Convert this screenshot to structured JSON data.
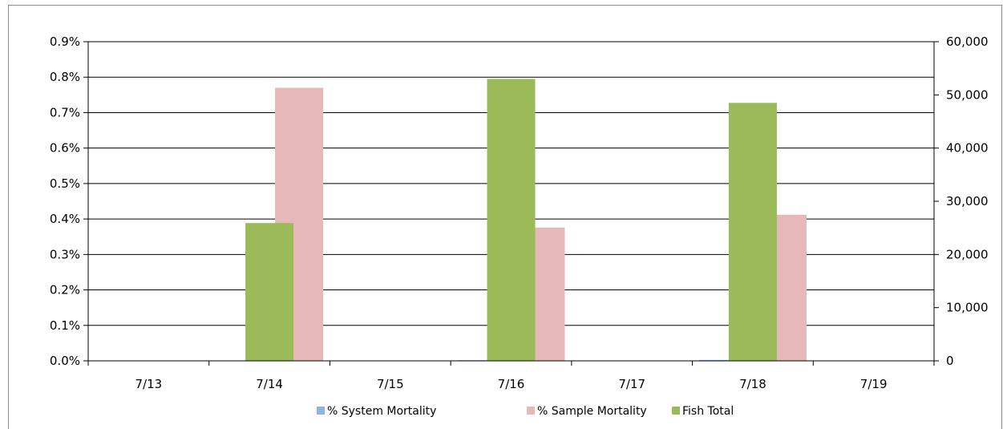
{
  "chart_data": {
    "type": "bar",
    "categories": [
      "7/13",
      "7/14",
      "7/15",
      "7/16",
      "7/17",
      "7/18",
      "7/19"
    ],
    "series": [
      {
        "name": "% System Mortality",
        "axis": "left",
        "color": "#8eb4e3",
        "values": [
          0,
          0.0002,
          0,
          0.0019,
          0,
          0.0025,
          0
        ]
      },
      {
        "name": "% Sample Mortality",
        "axis": "left",
        "color": "#e6b9b8",
        "values": [
          0,
          0.77,
          0,
          0.376,
          0,
          0.412,
          0
        ]
      },
      {
        "name": "Fish Total",
        "axis": "right",
        "color": "#9bbb59",
        "values": [
          0,
          25900,
          0,
          53000,
          0,
          48500,
          0
        ]
      }
    ],
    "y_left": {
      "ylim": [
        0,
        0.9
      ],
      "ticks": [
        0,
        0.1,
        0.2,
        0.3,
        0.4,
        0.5,
        0.6,
        0.7,
        0.8,
        0.9
      ],
      "tick_labels": [
        "0.0%",
        "0.1%",
        "0.2%",
        "0.3%",
        "0.4%",
        "0.5%",
        "0.6%",
        "0.7%",
        "0.8%",
        "0.9%"
      ]
    },
    "y_right": {
      "ylim": [
        0,
        60000
      ],
      "ticks": [
        0,
        10000,
        20000,
        30000,
        40000,
        50000,
        60000
      ],
      "tick_labels": [
        "0",
        "10,000",
        "20,000",
        "30,000",
        "40,000",
        "50,000",
        "60,000"
      ]
    },
    "grid": true,
    "legend_position": "bottom",
    "legend": [
      "% System Mortality",
      "% Sample Mortality",
      "Fish Total"
    ]
  }
}
